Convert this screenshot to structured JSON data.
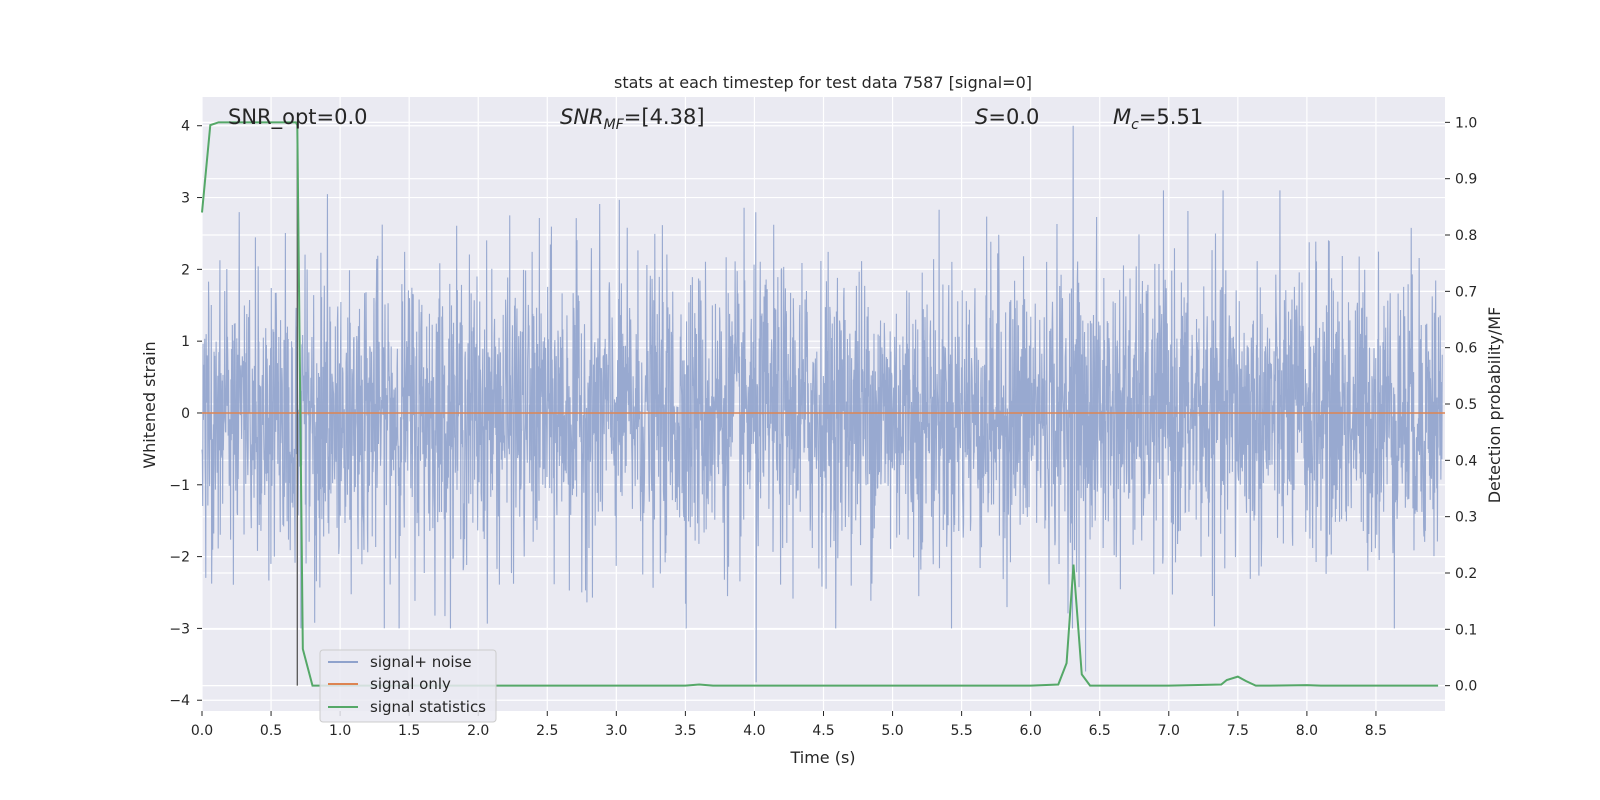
{
  "chart_data": {
    "type": "line",
    "title": "stats at each timestep for test data 7587 [signal=0]",
    "xlabel": "Time (s)",
    "ylabel": "Whitened strain",
    "y2label": "Detection probability/MF",
    "xlim": [
      0.0,
      9.0
    ],
    "ylim": [
      -4.15,
      4.4
    ],
    "y2lim": [
      -0.045,
      1.045
    ],
    "x_ticks": [
      "0.0",
      "0.5",
      "1.0",
      "1.5",
      "2.0",
      "2.5",
      "3.0",
      "3.5",
      "4.0",
      "4.5",
      "5.0",
      "5.5",
      "6.0",
      "6.5",
      "7.0",
      "7.5",
      "8.0",
      "8.5"
    ],
    "y_ticks": [
      "4",
      "3",
      "2",
      "1",
      "0",
      "−1",
      "−2",
      "−3",
      "−4"
    ],
    "y2_ticks": [
      "1.0",
      "0.9",
      "0.8",
      "0.7",
      "0.6",
      "0.5",
      "0.4",
      "0.3",
      "0.2",
      "0.1",
      "0.0"
    ],
    "grid": true,
    "legend_position": "lower-left",
    "annotations": {
      "snr_opt": "SNR_opt=0.0",
      "snr_mf_label": "SNR",
      "snr_mf_sub": "MF",
      "snr_mf_value": "=[4.38]",
      "s_label": "S",
      "s_value": "=0.0",
      "mc_label": "M",
      "mc_sub": "c",
      "mc_value": "=5.51"
    },
    "marker_time": 0.69,
    "series": [
      {
        "name": "signal+ noise",
        "color": "#8fa2cc",
        "kind": "noise",
        "spread": 1.0,
        "peak": 4.0,
        "trough": -3.6
      },
      {
        "name": "signal only",
        "color": "#dd8452",
        "values_x": [
          0.0,
          9.0
        ],
        "values_y": [
          0.0,
          0.0
        ]
      },
      {
        "name": "signal statistics",
        "color": "#55a868",
        "axis": "right",
        "x": [
          0.0,
          0.06,
          0.12,
          0.2,
          0.4,
          0.6,
          0.68,
          0.69,
          0.73,
          0.8,
          1.0,
          2.0,
          3.0,
          3.5,
          3.6,
          3.7,
          4.0,
          4.5,
          5.0,
          5.5,
          6.0,
          6.2,
          6.26,
          6.31,
          6.37,
          6.43,
          6.5,
          7.0,
          7.38,
          7.42,
          7.5,
          7.56,
          7.63,
          7.7,
          8.0,
          8.1,
          8.5,
          8.95
        ],
        "y": [
          0.84,
          0.995,
          1.0,
          1.0,
          1.0,
          1.0,
          1.0,
          0.995,
          0.065,
          0.0,
          0.0,
          0.0,
          0.0,
          0.0,
          0.002,
          0.0,
          0.0,
          0.0,
          0.0,
          0.0,
          0.0,
          0.002,
          0.04,
          0.215,
          0.02,
          0.0,
          0.0,
          0.0,
          0.002,
          0.01,
          0.016,
          0.008,
          0.0,
          0.0,
          0.001,
          0.0,
          0.0,
          0.0
        ]
      }
    ]
  }
}
